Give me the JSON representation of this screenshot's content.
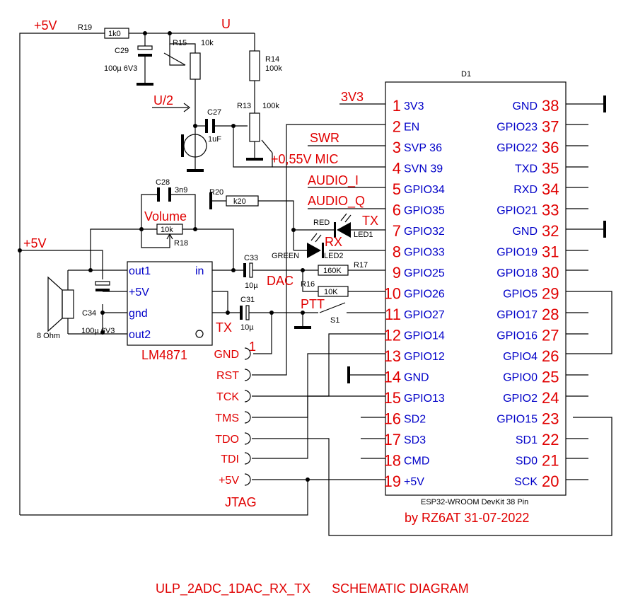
{
  "title": "ULP_2ADC_1DAC_RX_TX      SCHEMATIC DIAGRAM",
  "credit": "by RZ6AT   31-07-2022",
  "module": {
    "ref": "D1",
    "name": "ESP32-WROOM DevKit 38 Pin",
    "left_pins": [
      {
        "num": "1",
        "name": "3V3"
      },
      {
        "num": "2",
        "name": "EN"
      },
      {
        "num": "3",
        "name": "SVP 36"
      },
      {
        "num": "4",
        "name": "SVN 39"
      },
      {
        "num": "5",
        "name": "GPIO34"
      },
      {
        "num": "6",
        "name": "GPIO35"
      },
      {
        "num": "7",
        "name": "GPIO32"
      },
      {
        "num": "8",
        "name": "GPIO33"
      },
      {
        "num": "9",
        "name": "GPIO25"
      },
      {
        "num": "10",
        "name": "GPIO26"
      },
      {
        "num": "11",
        "name": "GPIO27"
      },
      {
        "num": "12",
        "name": "GPIO14"
      },
      {
        "num": "13",
        "name": "GPIO12"
      },
      {
        "num": "14",
        "name": "GND"
      },
      {
        "num": "15",
        "name": "GPIO13"
      },
      {
        "num": "16",
        "name": "SD2"
      },
      {
        "num": "17",
        "name": "SD3"
      },
      {
        "num": "18",
        "name": "CMD"
      },
      {
        "num": "19",
        "name": "+5V"
      }
    ],
    "right_pins": [
      {
        "num": "38",
        "name": "GND"
      },
      {
        "num": "37",
        "name": "GPIO23"
      },
      {
        "num": "36",
        "name": "GPIO22"
      },
      {
        "num": "35",
        "name": "TXD"
      },
      {
        "num": "34",
        "name": "RXD"
      },
      {
        "num": "33",
        "name": "GPIO21"
      },
      {
        "num": "32",
        "name": "GND"
      },
      {
        "num": "31",
        "name": "GPIO19"
      },
      {
        "num": "30",
        "name": "GPIO18"
      },
      {
        "num": "29",
        "name": "GPIO5"
      },
      {
        "num": "28",
        "name": "GPIO17"
      },
      {
        "num": "27",
        "name": "GPIO16"
      },
      {
        "num": "26",
        "name": "GPIO4"
      },
      {
        "num": "25",
        "name": "GPIO0"
      },
      {
        "num": "24",
        "name": "GPIO2"
      },
      {
        "num": "23",
        "name": "GPIO15"
      },
      {
        "num": "22",
        "name": "SD1"
      },
      {
        "num": "21",
        "name": "SD0"
      },
      {
        "num": "20",
        "name": "SCK"
      }
    ]
  },
  "net_labels": {
    "v5_top": "+5V",
    "v5_left": "+5V",
    "u": "U",
    "u_half": "U/2",
    "v3v3": "3V3",
    "swr": "SWR",
    "mic": "+0,55V  MIC",
    "audio_i": "AUDIO_I",
    "audio_q": "AUDIO_Q",
    "tx_led": "TX",
    "rx_led": "RX",
    "dac": "DAC",
    "ptt": "PTT",
    "volume": "Volume",
    "tx_amp": "TX",
    "one": "1",
    "jtag": "JTAG"
  },
  "jtag_pins": [
    "GND",
    "RST",
    "TCK",
    "TMS",
    "TDO",
    "TDI",
    "+5V"
  ],
  "components": {
    "r19": "R19",
    "r19_val": "1k0",
    "c29": "C29",
    "c29_val": "100µ 6V3",
    "r15": "R15",
    "r15_val": "10k",
    "r14": "R14",
    "r14_val": "100k",
    "r13": "R13",
    "r13_val": "100k",
    "c27": "C27",
    "c27_val": "1uF",
    "c28": "C28",
    "c28_val": "3n9",
    "r20": "R20",
    "r20_val": "k20",
    "r18": "R18",
    "r18_val": "10k",
    "led1_color": "RED",
    "led1": "LED1",
    "led2_color": "GREEN",
    "led2": "LED2",
    "c33": "C33",
    "c33_val": "10µ",
    "r17": "R17",
    "r17_val": "160K",
    "r16": "R16",
    "r16_val": "10K",
    "c31": "C31",
    "c31_val": "10µ",
    "s1": "S1",
    "c34": "C34",
    "c34_val": "100µ 6V3",
    "speaker": "8 Ohm",
    "amp": "LM4871",
    "amp_out1": "out1",
    "amp_in": "in",
    "amp_5v": "+5V",
    "amp_gnd": "gnd",
    "amp_out2": "out2"
  }
}
